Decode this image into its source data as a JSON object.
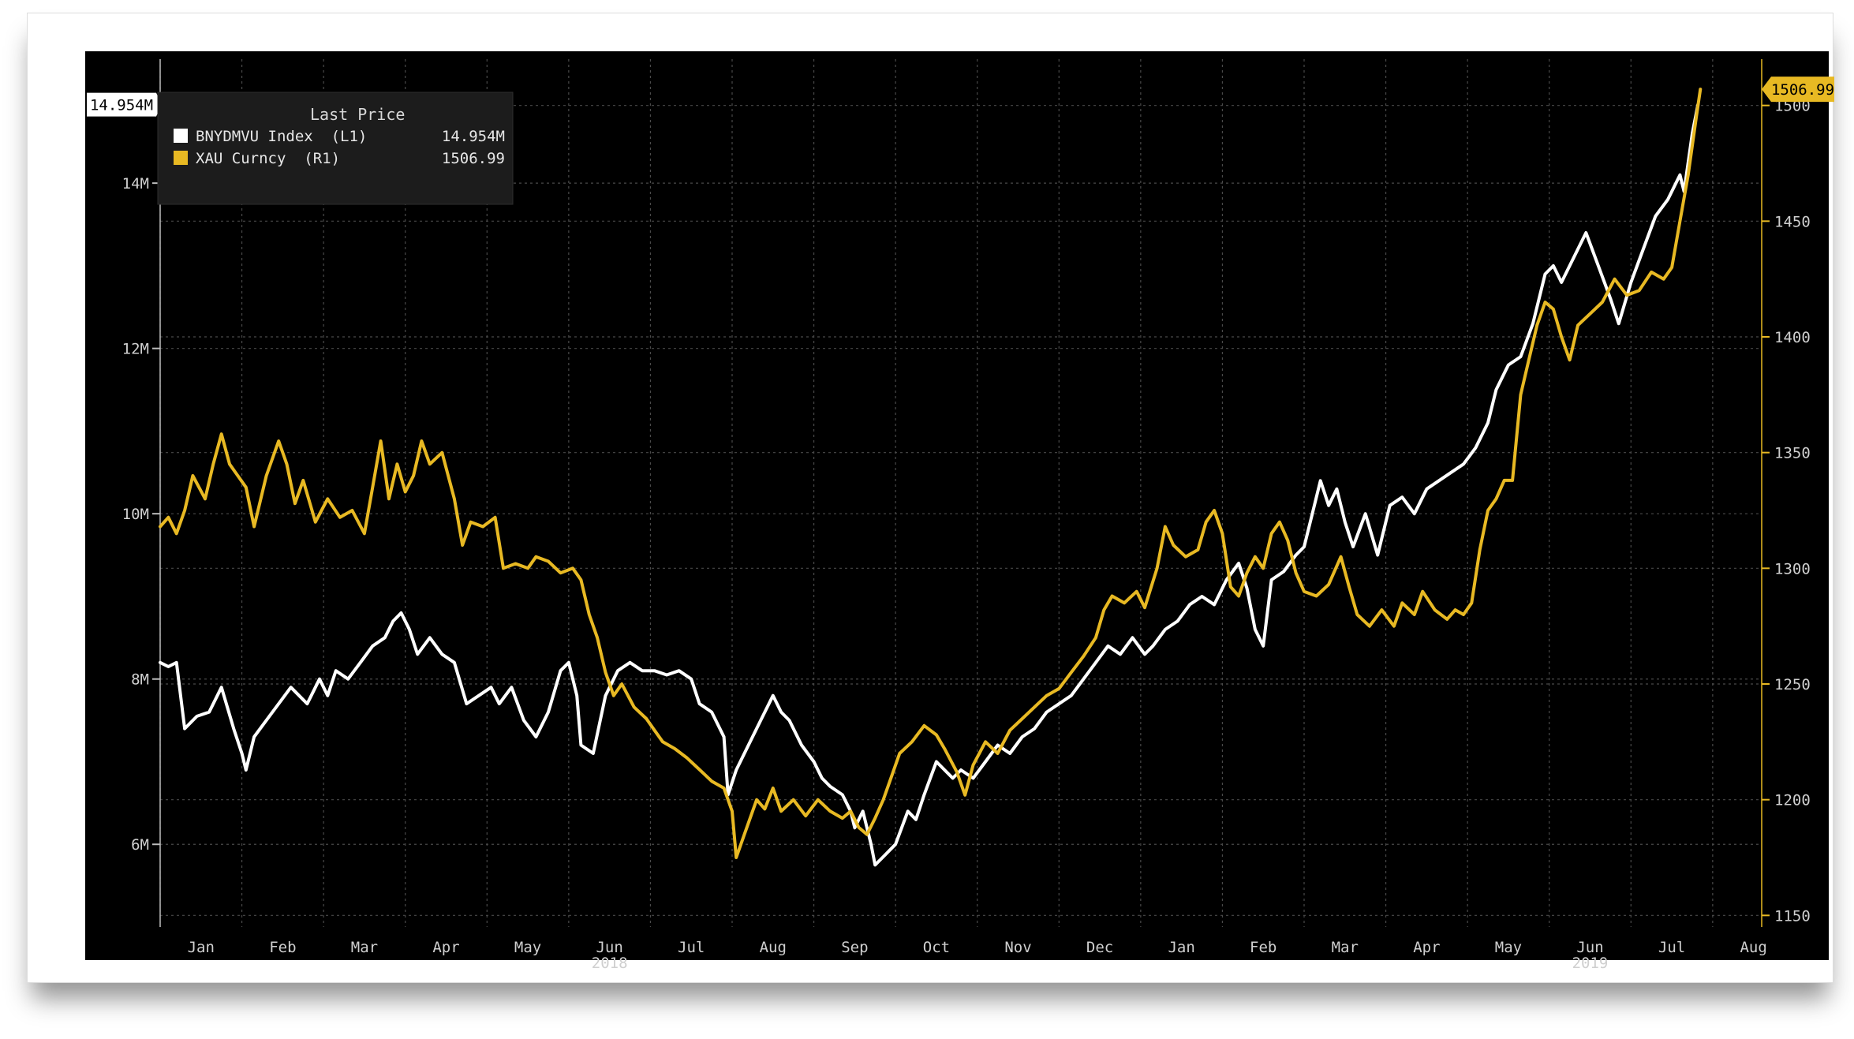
{
  "chart_data": {
    "type": "line",
    "legend": {
      "title": "Last Price",
      "placement": "top-left",
      "entries": [
        {
          "name": "BNYDMVU Index  (L1)",
          "value": "14.954M",
          "color": "#ffffff"
        },
        {
          "name": "XAU Curncy  (R1)",
          "value": "1506.99",
          "color": "#e8b923"
        }
      ]
    },
    "x_ticks": [
      "Jan",
      "Feb",
      "Mar",
      "Apr",
      "May",
      "Jun",
      "Jul",
      "Aug",
      "Sep",
      "Oct",
      "Nov",
      "Dec",
      "Jan",
      "Feb",
      "Mar",
      "Apr",
      "May",
      "Jun",
      "Jul",
      "Aug"
    ],
    "x_year_labels": [
      "2018",
      "2019"
    ],
    "left_axis": {
      "ticks": [
        "6M",
        "8M",
        "10M",
        "12M",
        "14M"
      ],
      "ylim": [
        5000000,
        15500000
      ],
      "last_value_label": "14.954M"
    },
    "right_axis": {
      "ticks": [
        "1150",
        "1200",
        "1250",
        "1300",
        "1350",
        "1400",
        "1450",
        "1500"
      ],
      "ylim": [
        1145,
        1520
      ],
      "last_value_label": "1506.99"
    },
    "grid": true,
    "colors": {
      "background": "#000000",
      "grid": "#4a4a4a",
      "white_series": "#ffffff",
      "gold_series": "#e8b923"
    },
    "x_range_months": [
      0,
      19.6
    ],
    "series": [
      {
        "name": "BNYDMVU Index",
        "axis": "left",
        "points": [
          [
            0,
            8.2
          ],
          [
            0.1,
            8.15
          ],
          [
            0.2,
            8.2
          ],
          [
            0.3,
            7.4
          ],
          [
            0.45,
            7.55
          ],
          [
            0.6,
            7.6
          ],
          [
            0.75,
            7.9
          ],
          [
            0.9,
            7.4
          ],
          [
            1.0,
            7.1
          ],
          [
            1.05,
            6.9
          ],
          [
            1.15,
            7.3
          ],
          [
            1.3,
            7.5
          ],
          [
            1.45,
            7.7
          ],
          [
            1.6,
            7.9
          ],
          [
            1.8,
            7.7
          ],
          [
            1.95,
            8.0
          ],
          [
            2.05,
            7.8
          ],
          [
            2.15,
            8.1
          ],
          [
            2.3,
            8.0
          ],
          [
            2.45,
            8.2
          ],
          [
            2.6,
            8.4
          ],
          [
            2.75,
            8.5
          ],
          [
            2.85,
            8.7
          ],
          [
            2.95,
            8.8
          ],
          [
            3.05,
            8.6
          ],
          [
            3.15,
            8.3
          ],
          [
            3.3,
            8.5
          ],
          [
            3.45,
            8.3
          ],
          [
            3.6,
            8.2
          ],
          [
            3.75,
            7.7
          ],
          [
            3.9,
            7.8
          ],
          [
            4.05,
            7.9
          ],
          [
            4.15,
            7.7
          ],
          [
            4.3,
            7.9
          ],
          [
            4.45,
            7.5
          ],
          [
            4.6,
            7.3
          ],
          [
            4.75,
            7.6
          ],
          [
            4.9,
            8.1
          ],
          [
            5.0,
            8.2
          ],
          [
            5.1,
            7.8
          ],
          [
            5.15,
            7.2
          ],
          [
            5.3,
            7.1
          ],
          [
            5.45,
            7.8
          ],
          [
            5.6,
            8.1
          ],
          [
            5.75,
            8.2
          ],
          [
            5.9,
            8.1
          ],
          [
            6.05,
            8.1
          ],
          [
            6.2,
            8.05
          ],
          [
            6.35,
            8.1
          ],
          [
            6.5,
            8.0
          ],
          [
            6.6,
            7.7
          ],
          [
            6.75,
            7.6
          ],
          [
            6.9,
            7.3
          ],
          [
            6.95,
            6.6
          ],
          [
            7.05,
            6.9
          ],
          [
            7.2,
            7.2
          ],
          [
            7.35,
            7.5
          ],
          [
            7.5,
            7.8
          ],
          [
            7.6,
            7.6
          ],
          [
            7.7,
            7.5
          ],
          [
            7.85,
            7.2
          ],
          [
            8.0,
            7.0
          ],
          [
            8.1,
            6.8
          ],
          [
            8.2,
            6.7
          ],
          [
            8.35,
            6.6
          ],
          [
            8.45,
            6.4
          ],
          [
            8.5,
            6.2
          ],
          [
            8.6,
            6.4
          ],
          [
            8.7,
            6.0
          ],
          [
            8.75,
            5.75
          ],
          [
            8.85,
            5.85
          ],
          [
            9.0,
            6.0
          ],
          [
            9.15,
            6.4
          ],
          [
            9.25,
            6.3
          ],
          [
            9.35,
            6.6
          ],
          [
            9.5,
            7.0
          ],
          [
            9.6,
            6.9
          ],
          [
            9.7,
            6.8
          ],
          [
            9.8,
            6.9
          ],
          [
            9.95,
            6.8
          ],
          [
            10.1,
            7.0
          ],
          [
            10.25,
            7.2
          ],
          [
            10.4,
            7.1
          ],
          [
            10.55,
            7.3
          ],
          [
            10.7,
            7.4
          ],
          [
            10.85,
            7.6
          ],
          [
            11.0,
            7.7
          ],
          [
            11.15,
            7.8
          ],
          [
            11.3,
            8.0
          ],
          [
            11.45,
            8.2
          ],
          [
            11.6,
            8.4
          ],
          [
            11.75,
            8.3
          ],
          [
            11.9,
            8.5
          ],
          [
            12.05,
            8.3
          ],
          [
            12.15,
            8.4
          ],
          [
            12.3,
            8.6
          ],
          [
            12.45,
            8.7
          ],
          [
            12.6,
            8.9
          ],
          [
            12.75,
            9.0
          ],
          [
            12.9,
            8.9
          ],
          [
            13.05,
            9.2
          ],
          [
            13.2,
            9.4
          ],
          [
            13.3,
            9.1
          ],
          [
            13.4,
            8.6
          ],
          [
            13.5,
            8.4
          ],
          [
            13.6,
            9.2
          ],
          [
            13.75,
            9.3
          ],
          [
            13.9,
            9.5
          ],
          [
            14.0,
            9.6
          ],
          [
            14.1,
            10.0
          ],
          [
            14.2,
            10.4
          ],
          [
            14.3,
            10.1
          ],
          [
            14.4,
            10.3
          ],
          [
            14.5,
            9.9
          ],
          [
            14.6,
            9.6
          ],
          [
            14.75,
            10.0
          ],
          [
            14.9,
            9.5
          ],
          [
            15.05,
            10.1
          ],
          [
            15.2,
            10.2
          ],
          [
            15.35,
            10.0
          ],
          [
            15.5,
            10.3
          ],
          [
            15.65,
            10.4
          ],
          [
            15.8,
            10.5
          ],
          [
            15.95,
            10.6
          ],
          [
            16.1,
            10.8
          ],
          [
            16.25,
            11.1
          ],
          [
            16.35,
            11.5
          ],
          [
            16.5,
            11.8
          ],
          [
            16.65,
            11.9
          ],
          [
            16.8,
            12.3
          ],
          [
            16.95,
            12.9
          ],
          [
            17.05,
            13.0
          ],
          [
            17.15,
            12.8
          ],
          [
            17.3,
            13.1
          ],
          [
            17.45,
            13.4
          ],
          [
            17.6,
            13.0
          ],
          [
            17.75,
            12.6
          ],
          [
            17.85,
            12.3
          ],
          [
            18.0,
            12.8
          ],
          [
            18.15,
            13.2
          ],
          [
            18.3,
            13.6
          ],
          [
            18.45,
            13.8
          ],
          [
            18.6,
            14.1
          ],
          [
            18.65,
            13.9
          ],
          [
            18.75,
            14.6
          ],
          [
            18.82,
            14.95
          ]
        ]
      },
      {
        "name": "XAU Curncy",
        "axis": "right",
        "points": [
          [
            0,
            1318
          ],
          [
            0.1,
            1322
          ],
          [
            0.2,
            1315
          ],
          [
            0.3,
            1325
          ],
          [
            0.4,
            1340
          ],
          [
            0.55,
            1330
          ],
          [
            0.65,
            1345
          ],
          [
            0.75,
            1358
          ],
          [
            0.85,
            1345
          ],
          [
            0.95,
            1340
          ],
          [
            1.05,
            1335
          ],
          [
            1.15,
            1318
          ],
          [
            1.3,
            1340
          ],
          [
            1.45,
            1355
          ],
          [
            1.55,
            1345
          ],
          [
            1.65,
            1328
          ],
          [
            1.75,
            1338
          ],
          [
            1.9,
            1320
          ],
          [
            2.05,
            1330
          ],
          [
            2.2,
            1322
          ],
          [
            2.35,
            1325
          ],
          [
            2.5,
            1315
          ],
          [
            2.6,
            1335
          ],
          [
            2.7,
            1355
          ],
          [
            2.8,
            1330
          ],
          [
            2.9,
            1345
          ],
          [
            3.0,
            1333
          ],
          [
            3.1,
            1340
          ],
          [
            3.2,
            1355
          ],
          [
            3.3,
            1345
          ],
          [
            3.45,
            1350
          ],
          [
            3.6,
            1330
          ],
          [
            3.7,
            1310
          ],
          [
            3.8,
            1320
          ],
          [
            3.95,
            1318
          ],
          [
            4.1,
            1322
          ],
          [
            4.2,
            1300
          ],
          [
            4.35,
            1302
          ],
          [
            4.5,
            1300
          ],
          [
            4.6,
            1305
          ],
          [
            4.75,
            1303
          ],
          [
            4.9,
            1298
          ],
          [
            5.05,
            1300
          ],
          [
            5.15,
            1295
          ],
          [
            5.25,
            1280
          ],
          [
            5.35,
            1270
          ],
          [
            5.45,
            1255
          ],
          [
            5.55,
            1245
          ],
          [
            5.65,
            1250
          ],
          [
            5.8,
            1240
          ],
          [
            5.95,
            1235
          ],
          [
            6.05,
            1230
          ],
          [
            6.15,
            1225
          ],
          [
            6.3,
            1222
          ],
          [
            6.45,
            1218
          ],
          [
            6.6,
            1213
          ],
          [
            6.75,
            1208
          ],
          [
            6.9,
            1205
          ],
          [
            7.0,
            1195
          ],
          [
            7.05,
            1175
          ],
          [
            7.15,
            1185
          ],
          [
            7.3,
            1200
          ],
          [
            7.4,
            1196
          ],
          [
            7.5,
            1205
          ],
          [
            7.6,
            1195
          ],
          [
            7.75,
            1200
          ],
          [
            7.9,
            1193
          ],
          [
            8.05,
            1200
          ],
          [
            8.2,
            1195
          ],
          [
            8.35,
            1192
          ],
          [
            8.45,
            1195
          ],
          [
            8.55,
            1188
          ],
          [
            8.65,
            1185
          ],
          [
            8.75,
            1192
          ],
          [
            8.85,
            1200
          ],
          [
            8.95,
            1210
          ],
          [
            9.05,
            1220
          ],
          [
            9.2,
            1225
          ],
          [
            9.35,
            1232
          ],
          [
            9.5,
            1228
          ],
          [
            9.6,
            1222
          ],
          [
            9.75,
            1212
          ],
          [
            9.85,
            1202
          ],
          [
            9.95,
            1215
          ],
          [
            10.1,
            1225
          ],
          [
            10.25,
            1220
          ],
          [
            10.4,
            1230
          ],
          [
            10.55,
            1235
          ],
          [
            10.7,
            1240
          ],
          [
            10.85,
            1245
          ],
          [
            11.0,
            1248
          ],
          [
            11.15,
            1255
          ],
          [
            11.3,
            1262
          ],
          [
            11.45,
            1270
          ],
          [
            11.55,
            1282
          ],
          [
            11.65,
            1288
          ],
          [
            11.8,
            1285
          ],
          [
            11.95,
            1290
          ],
          [
            12.05,
            1283
          ],
          [
            12.2,
            1300
          ],
          [
            12.3,
            1318
          ],
          [
            12.4,
            1310
          ],
          [
            12.55,
            1305
          ],
          [
            12.7,
            1308
          ],
          [
            12.8,
            1320
          ],
          [
            12.9,
            1325
          ],
          [
            13.0,
            1315
          ],
          [
            13.1,
            1292
          ],
          [
            13.2,
            1288
          ],
          [
            13.3,
            1298
          ],
          [
            13.4,
            1305
          ],
          [
            13.5,
            1300
          ],
          [
            13.6,
            1315
          ],
          [
            13.7,
            1320
          ],
          [
            13.8,
            1312
          ],
          [
            13.9,
            1298
          ],
          [
            14.0,
            1290
          ],
          [
            14.15,
            1288
          ],
          [
            14.3,
            1293
          ],
          [
            14.45,
            1305
          ],
          [
            14.55,
            1292
          ],
          [
            14.65,
            1280
          ],
          [
            14.8,
            1275
          ],
          [
            14.95,
            1282
          ],
          [
            15.1,
            1275
          ],
          [
            15.2,
            1285
          ],
          [
            15.35,
            1280
          ],
          [
            15.45,
            1290
          ],
          [
            15.6,
            1282
          ],
          [
            15.75,
            1278
          ],
          [
            15.85,
            1282
          ],
          [
            15.95,
            1280
          ],
          [
            16.05,
            1285
          ],
          [
            16.15,
            1308
          ],
          [
            16.25,
            1325
          ],
          [
            16.35,
            1330
          ],
          [
            16.45,
            1338
          ],
          [
            16.55,
            1338
          ],
          [
            16.65,
            1375
          ],
          [
            16.75,
            1390
          ],
          [
            16.85,
            1405
          ],
          [
            16.95,
            1415
          ],
          [
            17.05,
            1412
          ],
          [
            17.15,
            1400
          ],
          [
            17.25,
            1390
          ],
          [
            17.35,
            1405
          ],
          [
            17.5,
            1410
          ],
          [
            17.65,
            1415
          ],
          [
            17.8,
            1425
          ],
          [
            17.95,
            1418
          ],
          [
            18.1,
            1420
          ],
          [
            18.25,
            1428
          ],
          [
            18.4,
            1425
          ],
          [
            18.5,
            1430
          ],
          [
            18.6,
            1450
          ],
          [
            18.7,
            1470
          ],
          [
            18.8,
            1495
          ],
          [
            18.85,
            1507
          ]
        ]
      }
    ]
  }
}
